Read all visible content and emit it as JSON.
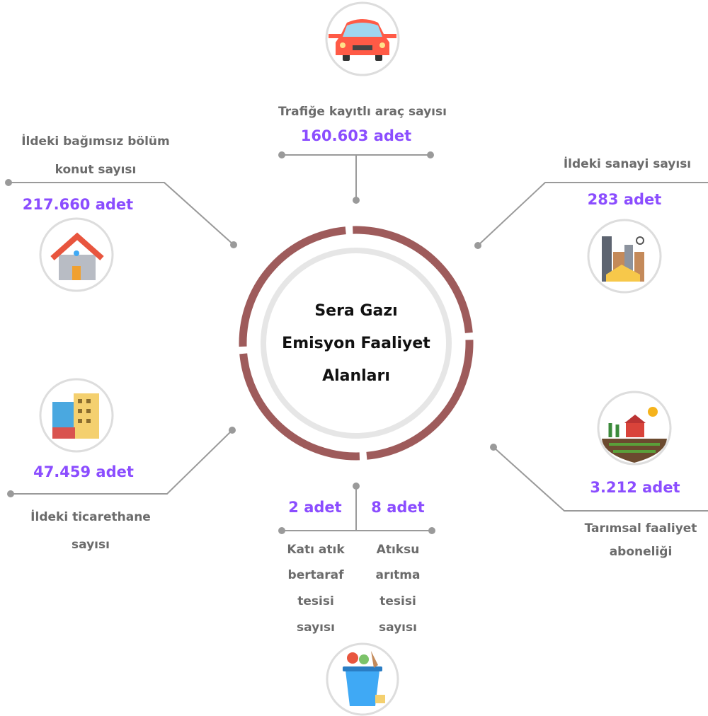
{
  "center": {
    "lines": [
      "Sera Gazı",
      "Emisyon Faaliyet",
      "Alanları"
    ]
  },
  "items": [
    {
      "label": [
        "Trafiğe kayıtlı araç sayısı"
      ],
      "value": "160.603 adet"
    },
    {
      "label": [
        "İldeki bağımsız bölüm",
        "konut sayısı"
      ],
      "value": "217.660 adet"
    },
    {
      "label": [
        "İldeki sanayi sayısı"
      ],
      "value": "283 adet"
    },
    {
      "label": [
        "İldeki ticarethane",
        "sayısı"
      ],
      "value": "47.459 adet"
    },
    {
      "label": [
        "Tarımsal faaliyet",
        "aboneliği"
      ],
      "value": "3.212 adet"
    },
    {
      "label": [
        "Katı atık",
        "bertaraf",
        "tesisi",
        "sayısı"
      ],
      "value": "2 adet"
    },
    {
      "label": [
        "Atıksu",
        "arıtma",
        "tesisi",
        "sayısı"
      ],
      "value": "8 adet"
    }
  ]
}
